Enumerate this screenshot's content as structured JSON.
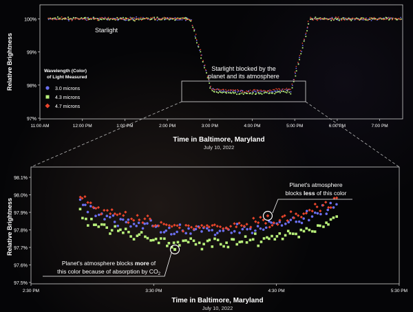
{
  "chart_data": [
    {
      "type": "scatter",
      "title": "",
      "xlabel": "Time in Baltimore, Maryland",
      "date_label": "July 10, 2022",
      "ylabel": "Relative Brightness",
      "x_ticks": [
        "11:00 AM",
        "12:00 PM",
        "1:00 PM",
        "2:00 PM",
        "3:00 PM",
        "4:00 PM",
        "5:00 PM",
        "6:00 PM",
        "7:00 PM"
      ],
      "y_ticks": [
        "97%",
        "98%",
        "99%",
        "100%"
      ],
      "xlim": [
        11.0,
        19.6
      ],
      "ylim": [
        97.0,
        100.3
      ],
      "legend": {
        "title_line1": "Wavelength (Color)",
        "title_line2": "of Light Measured",
        "placement": "left",
        "items": [
          {
            "label": "3.0 microns",
            "color": "#6b6ff0",
            "marker": "circle"
          },
          {
            "label": "4.3 microns",
            "color": "#b8f07a",
            "marker": "square"
          },
          {
            "label": "4.7 microns",
            "color": "#e8452c",
            "marker": "diamond"
          }
        ]
      },
      "annotations": {
        "starlight": "Starlight",
        "blocked_line1": "Starlight blocked by the",
        "blocked_line2": "planet and its atmosphere"
      },
      "series": [
        {
          "name": "3.0 microns",
          "shape": "baseline 100.0% before ~2:35 PM, drops to ~97.85% during 3:00–4:55 PM, recovers to 100.0% after ~5:20 PM"
        },
        {
          "name": "4.3 microns",
          "shape": "baseline 100.0%, transit depth ~97.75%"
        },
        {
          "name": "4.7 microns",
          "shape": "baseline 100.0%, transit depth ~97.85%"
        }
      ],
      "transit": {
        "ingress_start": 14.55,
        "ingress_end": 15.05,
        "egress_start": 16.9,
        "egress_end": 17.35,
        "depth": 97.8
      }
    },
    {
      "type": "scatter",
      "title": "",
      "xlabel": "Time in Baltimore, Maryland",
      "date_label": "July 10, 2022",
      "ylabel": "Relative Brightness",
      "x_ticks": [
        "2:30 PM",
        "3:30 PM",
        "4:30 PM",
        "5:30 PM"
      ],
      "y_ticks": [
        "97.5%",
        "97.6%",
        "97.7%",
        "97.8%",
        "97.9%",
        "98.0%",
        "98.1%"
      ],
      "xlim": [
        14.5,
        17.5
      ],
      "ylim": [
        97.5,
        98.12
      ],
      "annotations": {
        "less_line1": "Planet's atmosphere",
        "less_line2_pre": "blocks ",
        "less_line2_bold": "less",
        "less_line2_post": " of this color",
        "more_line1_pre": "Planet's atmosphere blocks ",
        "more_line1_bold": "more",
        "more_line1_post": " of",
        "more_line2": "this color because of absorption by CO",
        "more_sub": "2"
      },
      "series": [
        {
          "name": "3.0 microns",
          "level": 97.79
        },
        {
          "name": "4.3 microns",
          "level": 97.72
        },
        {
          "name": "4.7 microns",
          "level": 97.82
        }
      ]
    }
  ]
}
